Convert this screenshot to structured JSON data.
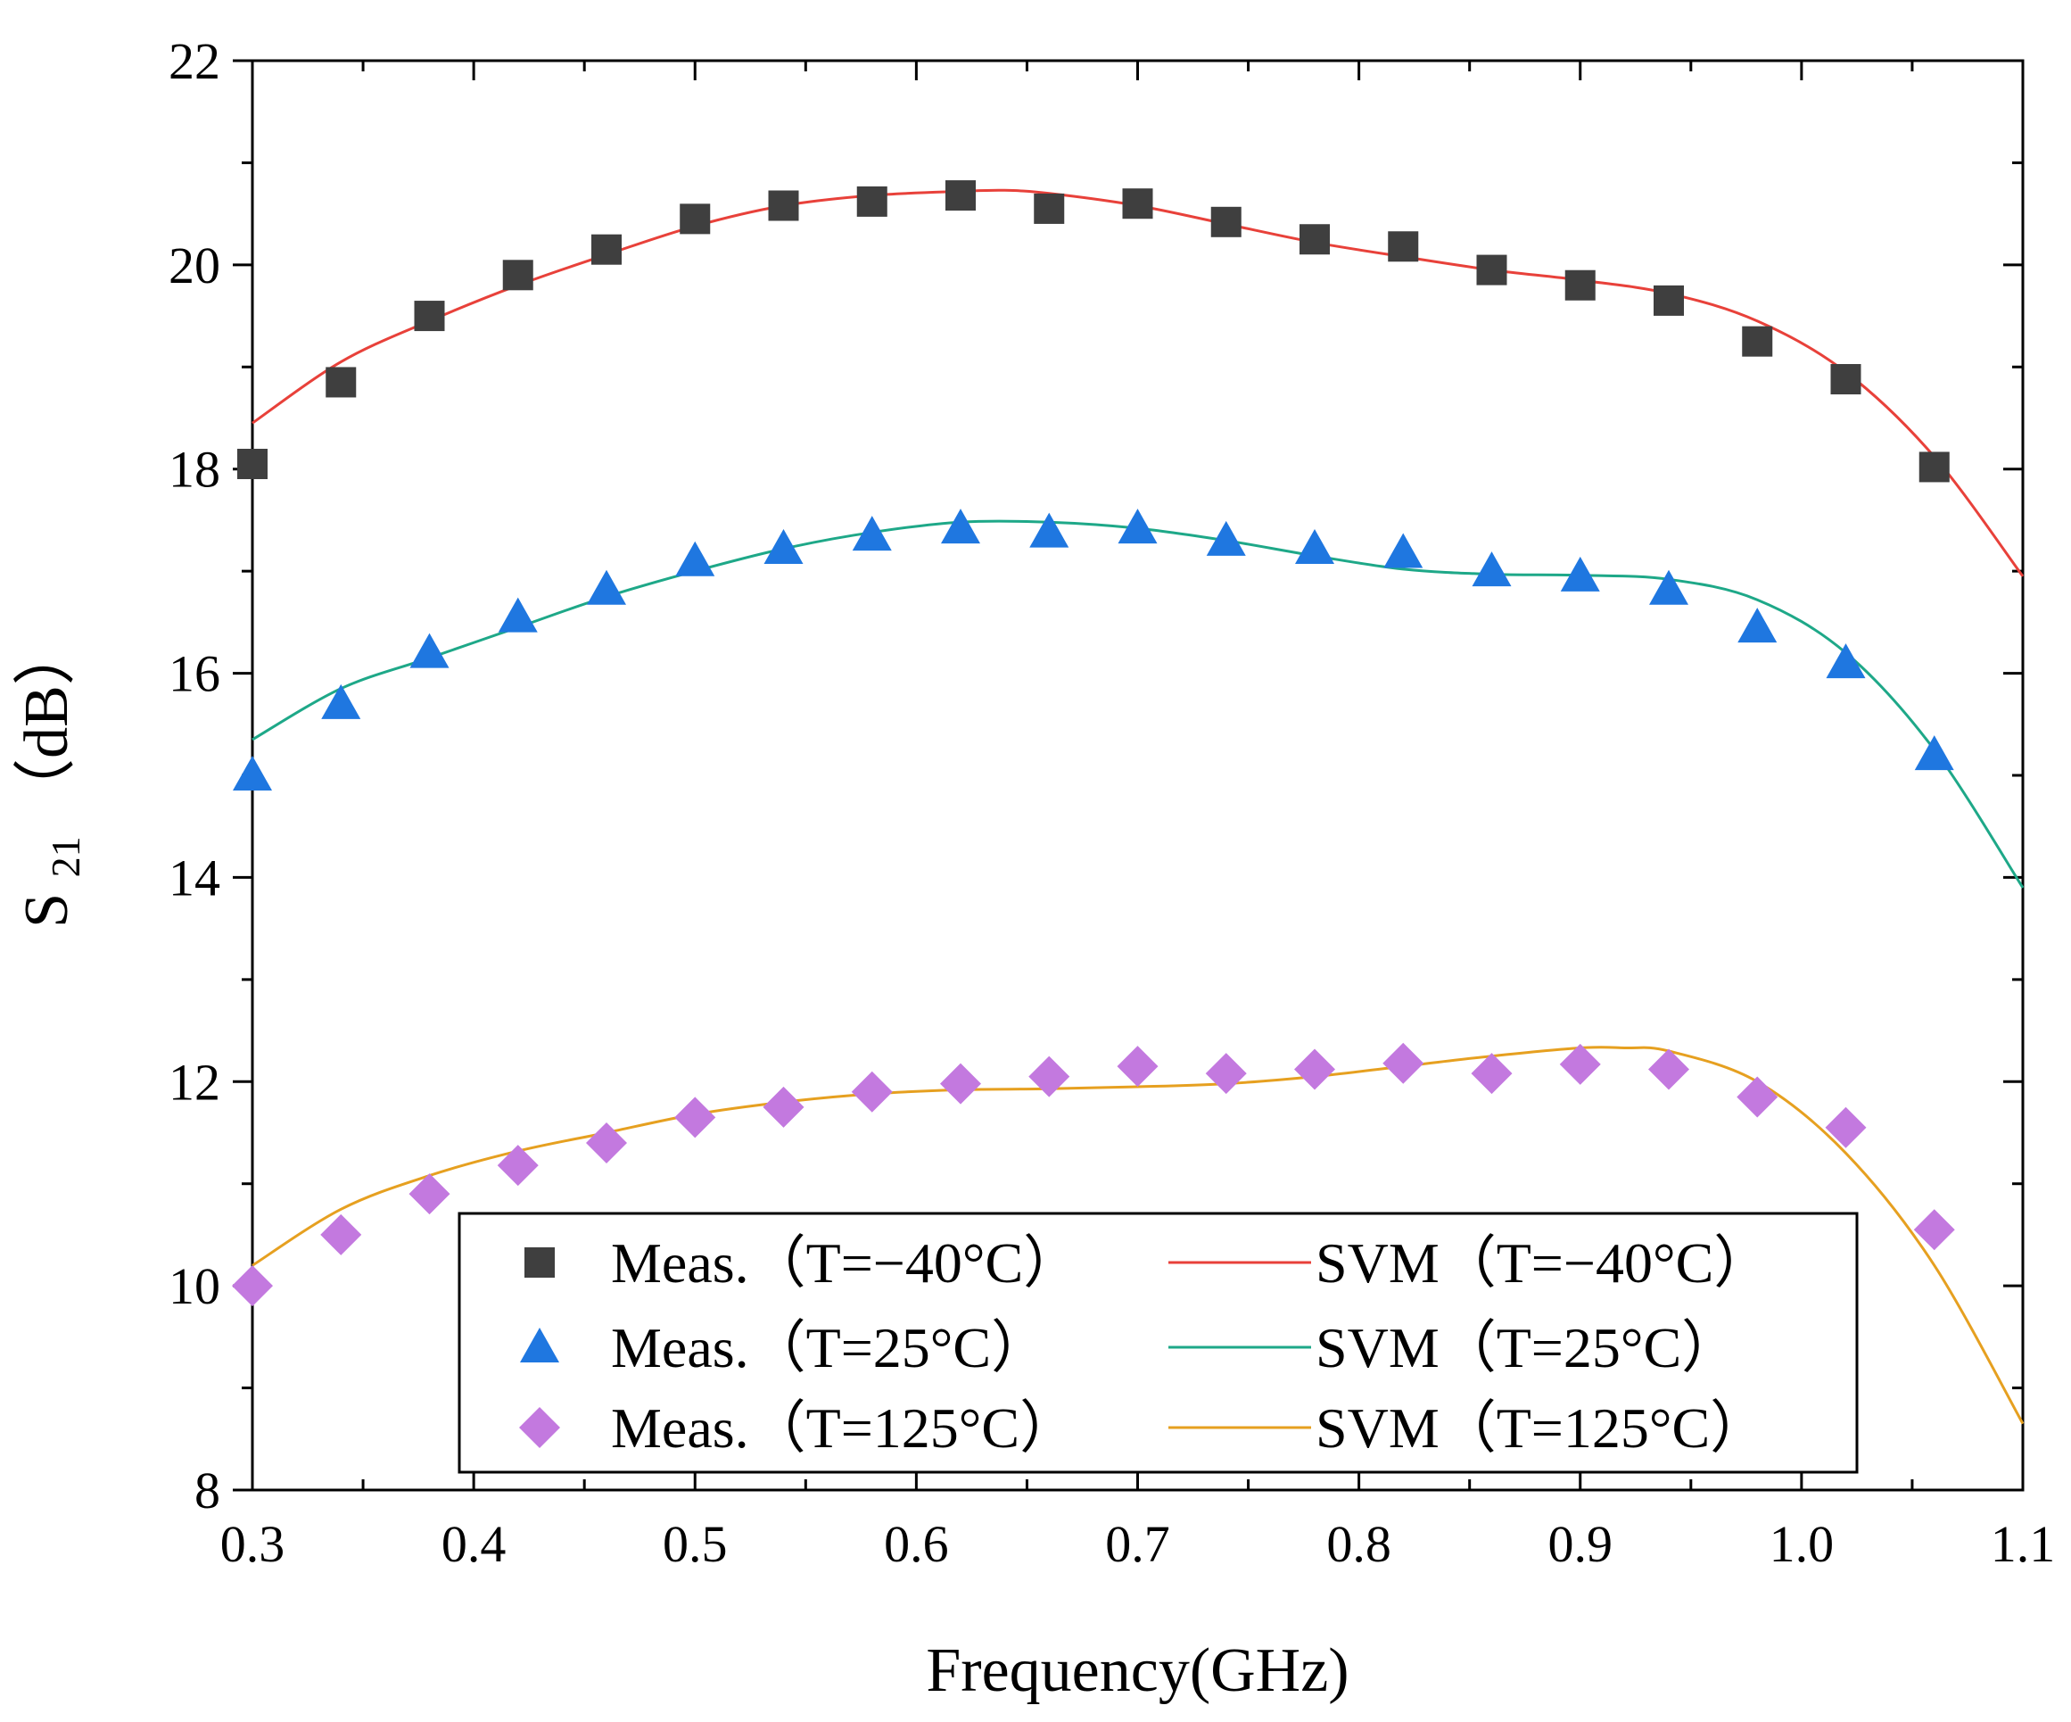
{
  "chart_data": {
    "type": "line",
    "title": "",
    "xlabel": "Frequency(GHz)",
    "ylabel": {
      "main": "S",
      "subscript": "21",
      "unit": "（dB）"
    },
    "xlim": [
      0.3,
      1.1
    ],
    "ylim": [
      8,
      22
    ],
    "xticks": [
      0.3,
      0.4,
      0.5,
      0.6,
      0.7,
      0.8,
      0.9,
      1.0,
      1.1
    ],
    "xtick_labels": [
      "0.3",
      "0.4",
      "0.5",
      "0.6",
      "0.7",
      "0.8",
      "0.9",
      "1.0",
      "1.1"
    ],
    "yticks": [
      8,
      10,
      12,
      14,
      16,
      18,
      20,
      22
    ],
    "ytick_labels": [
      "8",
      "10",
      "12",
      "14",
      "16",
      "18",
      "20",
      "22"
    ],
    "grid": false,
    "legend_position": "bottom-center",
    "series": [
      {
        "name": "Meas.（T=−40°C）",
        "kind": "scatter",
        "marker": "square",
        "color": "#3f3f3f",
        "x": [
          0.3,
          0.34,
          0.38,
          0.42,
          0.46,
          0.5,
          0.54,
          0.58,
          0.62,
          0.66,
          0.7,
          0.74,
          0.78,
          0.82,
          0.86,
          0.9,
          0.94,
          0.98,
          1.02,
          1.06
        ],
        "y": [
          18.05,
          18.85,
          19.5,
          19.9,
          20.15,
          20.45,
          20.58,
          20.62,
          20.68,
          20.55,
          20.6,
          20.42,
          20.25,
          20.18,
          19.95,
          19.8,
          19.65,
          19.25,
          18.88,
          18.02
        ]
      },
      {
        "name": "SVM（T=−40°C）",
        "kind": "line",
        "color": "#e8413a",
        "x": [
          0.3,
          0.34,
          0.38,
          0.42,
          0.46,
          0.5,
          0.54,
          0.58,
          0.62,
          0.64,
          0.66,
          0.7,
          0.74,
          0.78,
          0.82,
          0.86,
          0.9,
          0.94,
          0.98,
          1.02,
          1.06,
          1.1
        ],
        "y": [
          18.45,
          19.05,
          19.45,
          19.8,
          20.1,
          20.38,
          20.58,
          20.68,
          20.72,
          20.73,
          20.7,
          20.58,
          20.4,
          20.22,
          20.08,
          19.95,
          19.85,
          19.72,
          19.45,
          18.95,
          18.12,
          16.95
        ]
      },
      {
        "name": "Meas.（T=25°C）",
        "kind": "scatter",
        "marker": "triangle",
        "color": "#1f77e0",
        "x": [
          0.3,
          0.34,
          0.38,
          0.42,
          0.46,
          0.5,
          0.54,
          0.58,
          0.62,
          0.66,
          0.7,
          0.74,
          0.78,
          0.82,
          0.86,
          0.9,
          0.94,
          0.98,
          1.02,
          1.06
        ],
        "y": [
          15.0,
          15.7,
          16.2,
          16.55,
          16.82,
          17.1,
          17.22,
          17.35,
          17.42,
          17.38,
          17.42,
          17.3,
          17.22,
          17.18,
          17.0,
          16.95,
          16.82,
          16.45,
          16.1,
          15.2
        ]
      },
      {
        "name": "SVM（T=25°C）",
        "kind": "line",
        "color": "#1ea888",
        "x": [
          0.3,
          0.34,
          0.38,
          0.42,
          0.46,
          0.5,
          0.54,
          0.58,
          0.62,
          0.66,
          0.7,
          0.74,
          0.78,
          0.82,
          0.86,
          0.9,
          0.94,
          0.98,
          1.02,
          1.06,
          1.1
        ],
        "y": [
          15.35,
          15.85,
          16.15,
          16.45,
          16.75,
          17.0,
          17.22,
          17.38,
          17.48,
          17.48,
          17.42,
          17.3,
          17.15,
          17.02,
          16.97,
          16.96,
          16.92,
          16.72,
          16.2,
          15.25,
          13.9
        ]
      },
      {
        "name": "Meas.（T=125°C）",
        "kind": "scatter",
        "marker": "diamond",
        "color": "#c379df",
        "x": [
          0.3,
          0.34,
          0.38,
          0.42,
          0.46,
          0.5,
          0.54,
          0.58,
          0.62,
          0.66,
          0.7,
          0.74,
          0.78,
          0.82,
          0.86,
          0.9,
          0.94,
          0.98,
          1.02,
          1.06
        ],
        "y": [
          10.0,
          10.5,
          10.9,
          11.18,
          11.4,
          11.65,
          11.75,
          11.9,
          11.98,
          12.05,
          12.15,
          12.08,
          12.12,
          12.18,
          12.08,
          12.17,
          12.12,
          11.85,
          11.55,
          10.55
        ]
      },
      {
        "name": "SVM（T=125°C）",
        "kind": "line",
        "color": "#e6a020",
        "x": [
          0.3,
          0.34,
          0.38,
          0.42,
          0.46,
          0.5,
          0.54,
          0.58,
          0.62,
          0.66,
          0.7,
          0.74,
          0.78,
          0.82,
          0.86,
          0.9,
          0.92,
          0.94,
          0.98,
          1.02,
          1.06,
          1.1
        ],
        "y": [
          10.2,
          10.75,
          11.08,
          11.32,
          11.5,
          11.68,
          11.8,
          11.88,
          11.92,
          11.93,
          11.95,
          11.98,
          12.05,
          12.15,
          12.25,
          12.33,
          12.33,
          12.3,
          12.0,
          11.3,
          10.2,
          8.65
        ]
      }
    ]
  }
}
